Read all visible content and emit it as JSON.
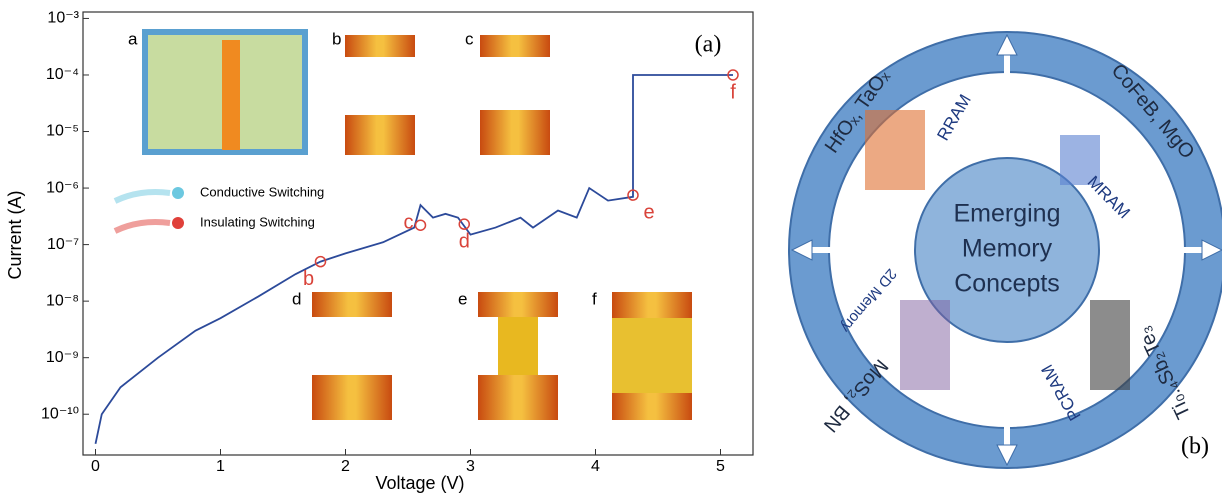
{
  "chart_data": {
    "type": "line",
    "log_y": true,
    "x_label": "Voltage (V)",
    "y_label": "Current (A)",
    "panel_label": "(a)",
    "xlim": [
      -0.1,
      5.26
    ],
    "xticks": [
      0,
      1,
      2,
      3,
      4,
      5
    ],
    "ylim": [
      1.9e-11,
      0.0013
    ],
    "yticks": [
      {
        "value": 1e-10,
        "label": "10⁻¹⁰"
      },
      {
        "value": 1e-09,
        "label": "10⁻⁹"
      },
      {
        "value": 1e-08,
        "label": "10⁻⁸"
      },
      {
        "value": 1e-07,
        "label": "10⁻⁷"
      },
      {
        "value": 1e-06,
        "label": "10⁻⁶"
      },
      {
        "value": 1e-05,
        "label": "10⁻⁵"
      },
      {
        "value": 0.0001,
        "label": "10⁻⁴"
      },
      {
        "value": 0.001,
        "label": "10⁻³"
      }
    ],
    "series": [
      {
        "color": "#2c4a9a",
        "x": [
          0,
          0.05,
          0.2,
          0.5,
          0.8,
          1.0,
          1.3,
          1.6,
          1.8,
          2.0,
          2.3,
          2.55,
          2.6,
          2.7,
          2.8,
          2.9,
          3.0,
          3.2,
          3.4,
          3.5,
          3.7,
          3.85,
          3.95,
          4.1,
          4.3,
          4.3,
          5.1
        ],
        "values": [
          3e-11,
          1e-10,
          3e-10,
          1e-09,
          3e-09,
          5e-09,
          1.2e-08,
          3e-08,
          5e-08,
          7e-08,
          1.1e-07,
          2e-07,
          5e-07,
          3e-07,
          3.5e-07,
          3e-07,
          1.5e-07,
          2e-07,
          3e-07,
          2e-07,
          4e-07,
          3e-07,
          1e-06,
          6e-07,
          7e-07,
          0.0001,
          0.0001
        ]
      }
    ],
    "annotations": [
      {
        "text": "b",
        "x": 1.8,
        "y": 5e-08
      },
      {
        "text": "c",
        "x": 2.6,
        "y": 2.2e-07
      },
      {
        "text": "d",
        "x": 2.95,
        "y": 2.3e-07
      },
      {
        "text": "e",
        "x": 4.3,
        "y": 7.5e-07
      },
      {
        "text": "f",
        "x": 5.1,
        "y": 0.0001
      }
    ],
    "legend": [
      {
        "name": "Conductive Switching",
        "color": "#6cc8e0"
      },
      {
        "name": "Insulating Switching",
        "color": "#e0403a"
      }
    ],
    "inset_labels": [
      "a",
      "b",
      "c",
      "d",
      "e",
      "f"
    ]
  },
  "diagram": {
    "center": [
      "Emerging",
      "Memory",
      "Concepts"
    ],
    "quadrants": [
      "RRAM",
      "MRAM",
      "PCRAM",
      "2D Memory"
    ],
    "materials": [
      "HfOₓ, TaOₓ",
      "CoFeB, MgO",
      "Ti₀.₄Sb₂Te₃",
      "MoS₂, BN"
    ],
    "panel_label": "(b)"
  }
}
